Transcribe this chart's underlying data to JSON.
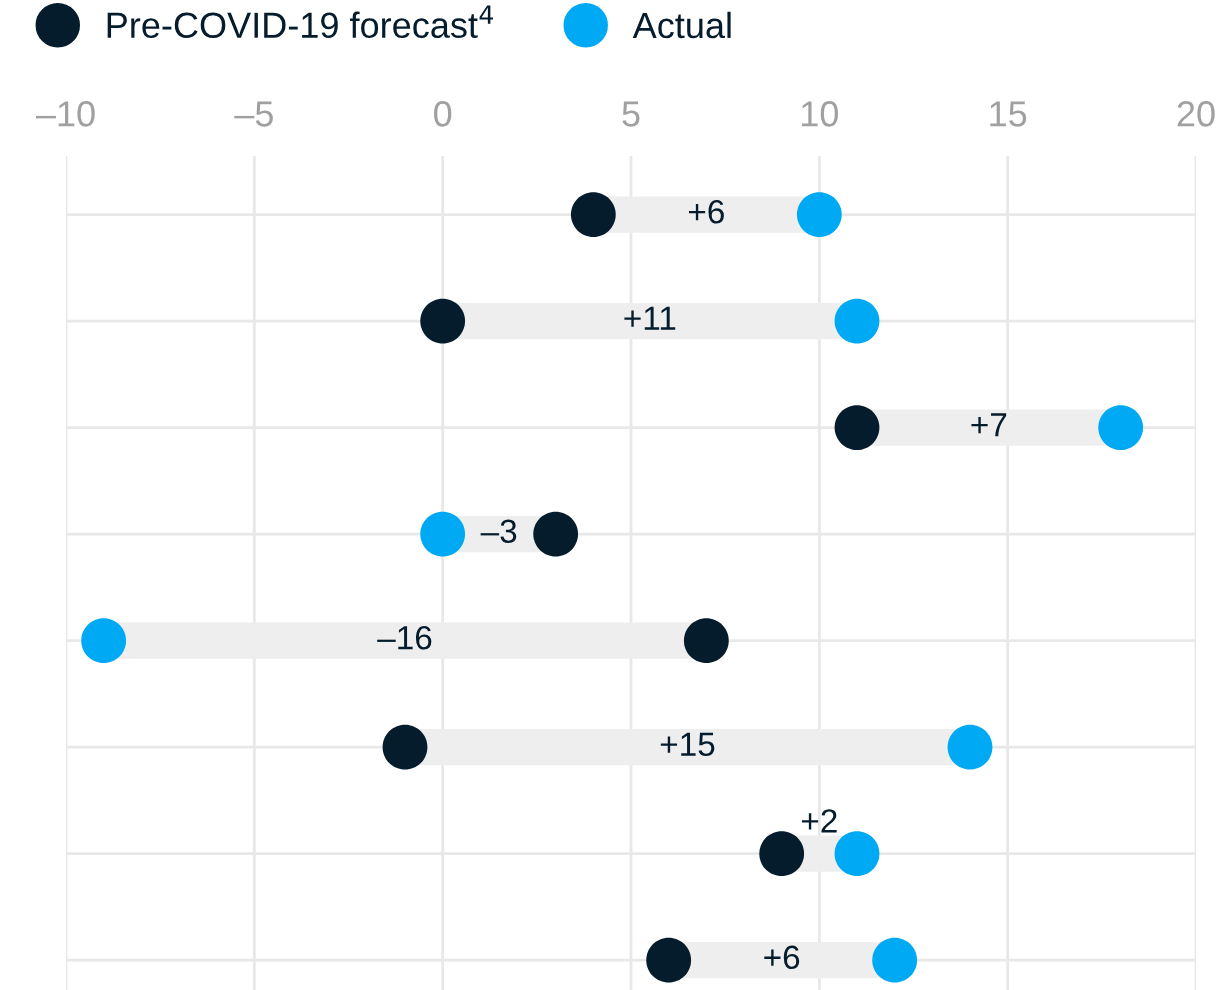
{
  "chart_data": {
    "type": "scatter",
    "orientation": "horizontal",
    "categories": [
      null,
      null,
      null,
      null,
      null,
      null,
      null,
      null
    ],
    "series": [
      {
        "name": "Pre-COVID-19 forecast$^{4}$",
        "color": "#051c2c",
        "values": [
          4,
          0,
          11,
          3,
          7,
          -1,
          9,
          6
        ]
      },
      {
        "name": "Actual",
        "color": "#00a9f4",
        "values": [
          10,
          11,
          18,
          0,
          -9,
          14,
          11,
          12
        ]
      }
    ],
    "annotations": [
      "+6",
      "+11",
      "+7",
      "–3",
      "–16",
      "+15",
      "+2",
      "+6"
    ],
    "xlim": [
      -10,
      20
    ],
    "xticks": [
      {
        "value": -10,
        "label": "–10"
      },
      {
        "value": -5,
        "label": "–5"
      },
      0,
      5,
      10,
      15,
      20
    ],
    "grid": true,
    "legend": "top left",
    "marker": "circle"
  }
}
